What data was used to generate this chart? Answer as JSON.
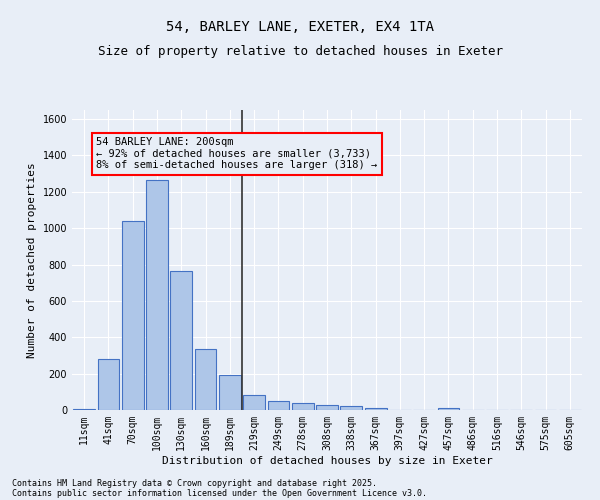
{
  "title_line1": "54, BARLEY LANE, EXETER, EX4 1TA",
  "title_line2": "Size of property relative to detached houses in Exeter",
  "xlabel": "Distribution of detached houses by size in Exeter",
  "ylabel": "Number of detached properties",
  "categories": [
    "11sqm",
    "41sqm",
    "70sqm",
    "100sqm",
    "130sqm",
    "160sqm",
    "189sqm",
    "219sqm",
    "249sqm",
    "278sqm",
    "308sqm",
    "338sqm",
    "367sqm",
    "397sqm",
    "427sqm",
    "457sqm",
    "486sqm",
    "516sqm",
    "546sqm",
    "575sqm",
    "605sqm"
  ],
  "values": [
    8,
    280,
    1040,
    1265,
    765,
    335,
    190,
    80,
    50,
    38,
    25,
    20,
    12,
    0,
    0,
    12,
    0,
    0,
    0,
    0,
    0
  ],
  "bar_color": "#aec6e8",
  "bar_edge_color": "#4472c4",
  "vline_x": 6.5,
  "vline_color": "#333333",
  "annotation_text": "54 BARLEY LANE: 200sqm\n← 92% of detached houses are smaller (3,733)\n8% of semi-detached houses are larger (318) →",
  "ylim": [
    0,
    1650
  ],
  "yticks": [
    0,
    200,
    400,
    600,
    800,
    1000,
    1200,
    1400,
    1600
  ],
  "background_color": "#e8eef7",
  "grid_color": "#ffffff",
  "footer_line1": "Contains HM Land Registry data © Crown copyright and database right 2025.",
  "footer_line2": "Contains public sector information licensed under the Open Government Licence v3.0.",
  "title_fontsize": 10,
  "subtitle_fontsize": 9,
  "axis_label_fontsize": 8,
  "tick_fontsize": 7,
  "annotation_fontsize": 7.5,
  "footer_fontsize": 6
}
